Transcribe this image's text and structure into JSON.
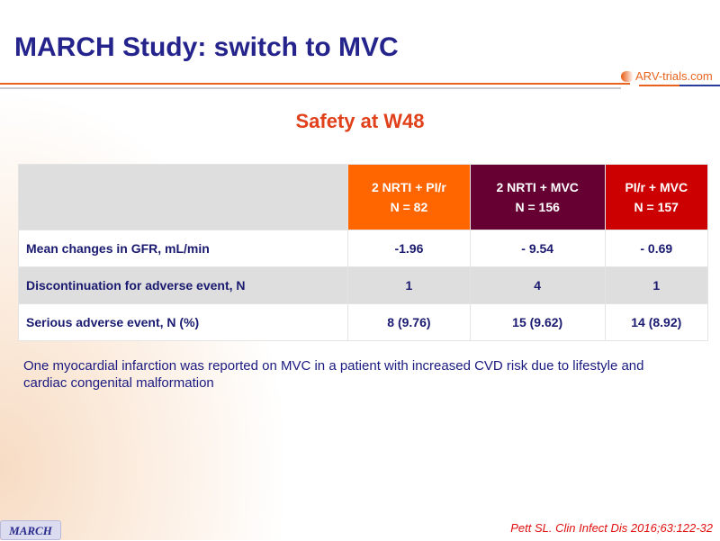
{
  "title": "MARCH Study: switch to MVC",
  "logo": "ARV-trials.com",
  "subtitle": "Safety at W48",
  "table": {
    "headers": [
      {
        "line1": "2 NRTI + PI/r",
        "line2": "N = 82"
      },
      {
        "line1": "2 NRTI + MVC",
        "line2": "N = 156"
      },
      {
        "line1": "PI/r + MVC",
        "line2": "N = 157"
      }
    ],
    "rows": [
      {
        "label": "Mean changes in GFR, mL/min",
        "values": [
          "-1.96",
          "- 9.54",
          "- 0.69"
        ]
      },
      {
        "label": "Discontinuation for adverse event, N",
        "values": [
          "1",
          "4",
          "1"
        ]
      },
      {
        "label": "Serious adverse event, N (%)",
        "values": [
          "8 (9.76)",
          "15 (9.62)",
          "14 (8.92)"
        ]
      }
    ]
  },
  "note": "One myocardial infarction was reported on MVC in a patient with increased CVD risk due to lifestyle and cardiac congenital malformation",
  "footer_tag": "MARCH",
  "reference": "Pett SL. Clin Infect Dis 2016;63:122-32"
}
